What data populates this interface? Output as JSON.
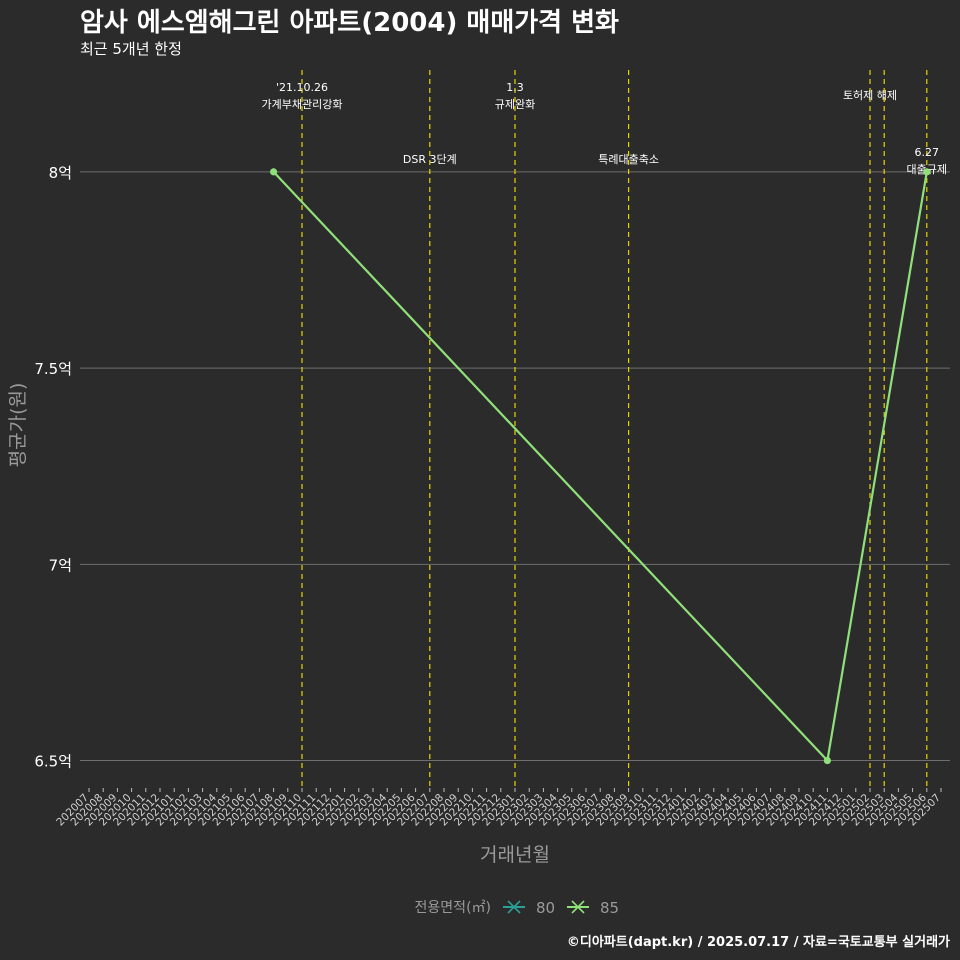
{
  "title": "암사 에스엠해그린 아파트(2004) 매매가격 변화",
  "subtitle": "최근 5개년 한정",
  "caption": "©디아파트(dapt.kr) / 2025.07.17 / 자료=국토교통부 실거래가",
  "chart_data": {
    "type": "line",
    "xlabel": "거래년월",
    "ylabel": "평균가(원)",
    "x_categories": [
      "202007",
      "202008",
      "202009",
      "202010",
      "202011",
      "202012",
      "202101",
      "202102",
      "202103",
      "202104",
      "202105",
      "202106",
      "202107",
      "202108",
      "202109",
      "202110",
      "202111",
      "202112",
      "202201",
      "202202",
      "202203",
      "202204",
      "202205",
      "202206",
      "202207",
      "202208",
      "202209",
      "202210",
      "202211",
      "202212",
      "202301",
      "202302",
      "202303",
      "202304",
      "202305",
      "202306",
      "202307",
      "202308",
      "202309",
      "202310",
      "202311",
      "202312",
      "202401",
      "202402",
      "202403",
      "202404",
      "202405",
      "202406",
      "202407",
      "202408",
      "202409",
      "202410",
      "202411",
      "202412",
      "202501",
      "202502",
      "202503",
      "202504",
      "202505",
      "202506",
      "202507"
    ],
    "y_ticks": [
      {
        "value": 6.5,
        "label": "6.5억"
      },
      {
        "value": 7.0,
        "label": "7억"
      },
      {
        "value": 7.5,
        "label": "7.5억"
      },
      {
        "value": 8.0,
        "label": "8억"
      }
    ],
    "ylim": [
      6.43,
      8.28
    ],
    "grid": true,
    "series": [
      {
        "name": "80",
        "color": "#2aa198",
        "points": []
      },
      {
        "name": "85",
        "color": "#90e07a",
        "points": [
          {
            "x": "202108",
            "y": 8.0
          },
          {
            "x": "202411",
            "y": 6.5
          },
          {
            "x": "202506",
            "y": 8.0
          }
        ]
      }
    ],
    "events": [
      {
        "x": "202110",
        "lines": [
          "'21.10.26",
          "가계부채관리강화"
        ],
        "level": 0
      },
      {
        "x": "202207",
        "lines": [
          "DSR 3단계"
        ],
        "level": 2
      },
      {
        "x": "202301",
        "lines": [
          "1.3",
          "규제완화"
        ],
        "level": 0
      },
      {
        "x": "202309",
        "lines": [
          "특례대출축소"
        ],
        "level": 2
      },
      {
        "x": "202502",
        "lines": [
          "토허제 해제"
        ],
        "level": 1
      },
      {
        "x": "202503",
        "lines": [],
        "level": 1
      },
      {
        "x": "202506",
        "lines": [
          "6.27",
          "대출규제"
        ],
        "level": 3
      }
    ],
    "legend": {
      "title": "전용면적(㎡)",
      "position": "bottom"
    }
  }
}
